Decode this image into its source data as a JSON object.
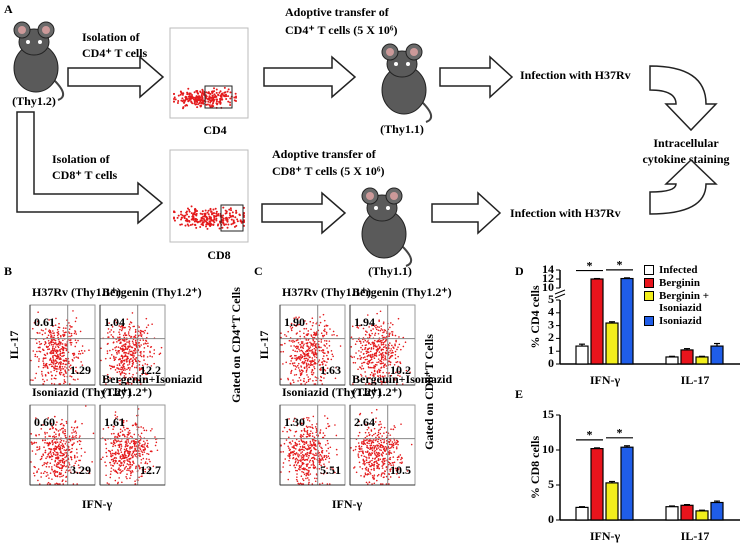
{
  "panel_a": {
    "label": "A",
    "cd4_row": {
      "isolation": [
        "Isolation of",
        "CD4⁺ T cells"
      ],
      "donor": "(Thy1.2)",
      "axis": "CD4",
      "transfer": [
        "Adoptive transfer of",
        "CD4⁺ T cells (5 X 10⁶)"
      ],
      "recipient": "(Thy1.1)",
      "infection": "Infection with H37Rv"
    },
    "cd8_row": {
      "isolation": [
        "Isolation of",
        "CD8⁺ T cells"
      ],
      "axis": "CD8",
      "transfer": [
        "Adoptive transfer of",
        "CD8⁺ T cells (5 X 10⁶)"
      ],
      "recipient": "(Thy1.1)",
      "infection": "Infection with H37Rv"
    },
    "readout": [
      "Intracellular",
      "cytokine staining"
    ]
  },
  "panel_b": {
    "label": "B",
    "y_label": "IL-17",
    "x_label": "IFN-γ",
    "gate_label": "Gated on CD4⁺T Cells",
    "plots": [
      {
        "title": [
          "H37Rv (Thy1.1⁺)"
        ],
        "upper_left": "0.61",
        "lower_right": "1.29"
      },
      {
        "title": [
          "Bergenin (Thy1.2⁺)"
        ],
        "upper_left": "1.04",
        "lower_right": "12.2"
      },
      {
        "title": [
          "Isoniazid (Thy1.2⁺)"
        ],
        "upper_left": "0.60",
        "lower_right": "3.29"
      },
      {
        "title": [
          "Bergenin+Isoniazid",
          "(Thy1.2⁺)"
        ],
        "upper_left": "1.61",
        "lower_right": "12.7"
      }
    ]
  },
  "panel_c": {
    "label": "C",
    "y_label": "IL-17",
    "x_label": "IFN-γ",
    "gate_label": "Gated on CD8⁺T Cells",
    "plots": [
      {
        "title": [
          "H37Rv (Thy1.1⁺)"
        ],
        "upper_left": "1.90",
        "lower_right": "1.63"
      },
      {
        "title": [
          "Bergenin (Thy1.2⁺)"
        ],
        "upper_left": "1.94",
        "lower_right": "10.2"
      },
      {
        "title": [
          "Isoniazid (Thy1.2⁺)"
        ],
        "upper_left": "1.30",
        "lower_right": "5.51"
      },
      {
        "title": [
          "Bergenin+Isoniazid",
          "(Thy1.2⁺)"
        ],
        "upper_left": "2.64",
        "lower_right": "10.5"
      }
    ]
  },
  "chart_data": [
    {
      "type": "bar",
      "label": "D",
      "y_label": "% CD4 cells",
      "categories": [
        "IFN-γ",
        "IL-17"
      ],
      "series": [
        {
          "name": "Infected",
          "color": "#ffffff",
          "values": [
            1.4,
            0.55
          ],
          "errors": [
            0.15,
            0.05
          ]
        },
        {
          "name": "Berginin",
          "color": "#e8141c",
          "values": [
            12,
            1.1
          ],
          "errors": [
            0.1,
            0.1
          ]
        },
        {
          "name": "Berginin + Isoniazid",
          "color": "#f2ee1c",
          "values": [
            3.2,
            0.55
          ],
          "errors": [
            0.1,
            0.05
          ]
        },
        {
          "name": "Isoniazid",
          "color": "#1f5de8",
          "values": [
            12.1,
            1.4
          ],
          "errors": [
            0.15,
            0.2
          ]
        }
      ],
      "ylim": [
        0,
        14
      ],
      "axis_break": [
        5,
        10
      ],
      "yticks": [
        0,
        1,
        2,
        3,
        4,
        5,
        10,
        12,
        14
      ],
      "legend": true,
      "annotations": [
        "*",
        "*"
      ]
    },
    {
      "type": "bar",
      "label": "E",
      "y_label": "% CD8 cells",
      "categories": [
        "IFN-γ",
        "IL-17"
      ],
      "series": [
        {
          "color": "#ffffff",
          "values": [
            1.8,
            1.9
          ],
          "errors": [
            0.1,
            0.1
          ]
        },
        {
          "color": "#e8141c",
          "values": [
            10.2,
            2.1
          ],
          "errors": [
            0.1,
            0.1
          ]
        },
        {
          "color": "#f2ee1c",
          "values": [
            5.3,
            1.3
          ],
          "errors": [
            0.2,
            0.1
          ]
        },
        {
          "color": "#1f5de8",
          "values": [
            10.4,
            2.5
          ],
          "errors": [
            0.2,
            0.2
          ]
        }
      ],
      "ylim": [
        0,
        15
      ],
      "yticks": [
        0,
        5,
        10,
        15
      ],
      "legend": false,
      "annotations": [
        "*",
        "*"
      ]
    }
  ]
}
